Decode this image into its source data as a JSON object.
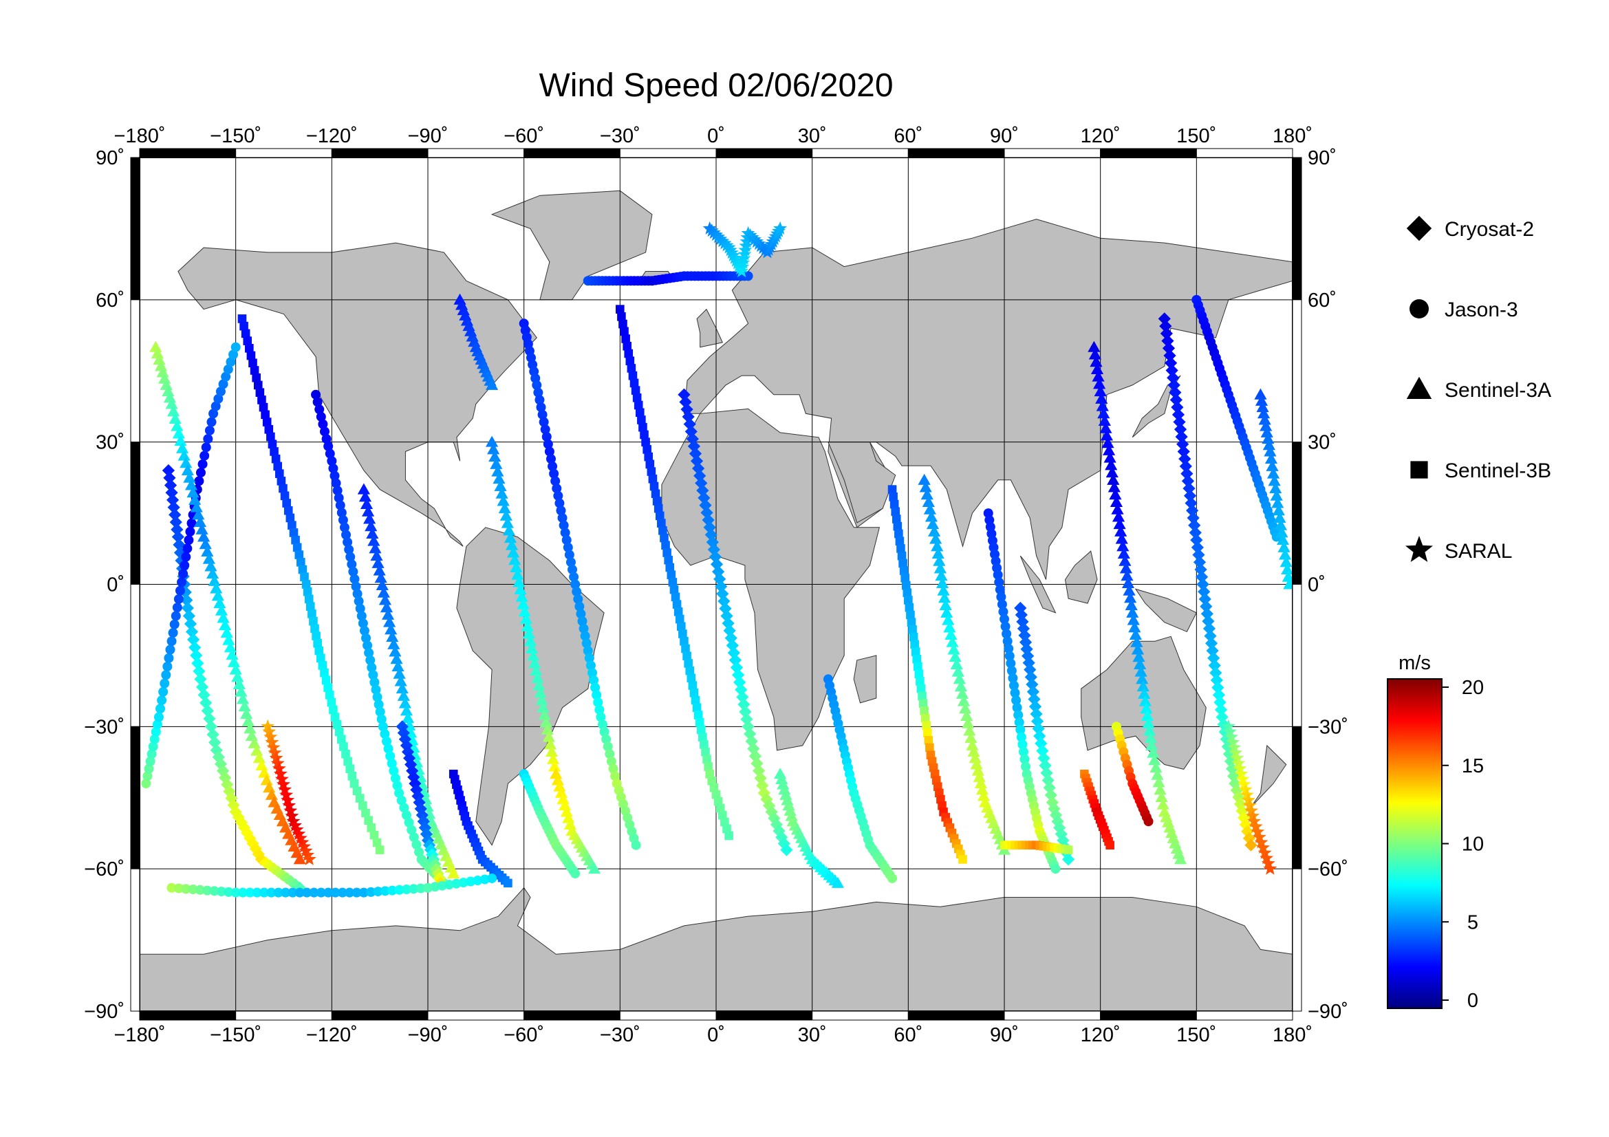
{
  "chart_data": {
    "type": "scatter",
    "title": "Wind Speed 02/06/2020",
    "lon_ticks": [
      {
        "value": -180,
        "label": "−180˚"
      },
      {
        "value": -150,
        "label": "−150˚"
      },
      {
        "value": -120,
        "label": "−120˚"
      },
      {
        "value": -90,
        "label": "−90˚"
      },
      {
        "value": -60,
        "label": "−60˚"
      },
      {
        "value": -30,
        "label": "−30˚"
      },
      {
        "value": 0,
        "label": "0˚"
      },
      {
        "value": 30,
        "label": "30˚"
      },
      {
        "value": 60,
        "label": "60˚"
      },
      {
        "value": 90,
        "label": "90˚"
      },
      {
        "value": 120,
        "label": "120˚"
      },
      {
        "value": 150,
        "label": "150˚"
      },
      {
        "value": 180,
        "label": "180˚"
      }
    ],
    "lat_ticks": [
      {
        "value": 90,
        "label": "90˚"
      },
      {
        "value": 60,
        "label": "60˚"
      },
      {
        "value": 30,
        "label": "30˚"
      },
      {
        "value": 0,
        "label": "0˚"
      },
      {
        "value": -30,
        "label": "−30˚"
      },
      {
        "value": -60,
        "label": "−60˚"
      },
      {
        "value": -90,
        "label": "−90˚"
      }
    ],
    "xlim": [
      -180,
      180
    ],
    "ylim": [
      -90,
      90
    ],
    "grid": true,
    "legend": {
      "placement": "right",
      "entries": [
        {
          "name": "Cryosat-2",
          "marker": "diamond"
        },
        {
          "name": "Jason-3",
          "marker": "circle"
        },
        {
          "name": "Sentinel-3A",
          "marker": "triangle"
        },
        {
          "name": "Sentinel-3B",
          "marker": "square"
        },
        {
          "name": "SARAL",
          "marker": "star"
        }
      ]
    },
    "colorbar": {
      "unit": "m/s",
      "range": [
        0,
        20
      ],
      "ticks": [
        {
          "value": 0,
          "label": "0"
        },
        {
          "value": 5,
          "label": "5"
        },
        {
          "value": 10,
          "label": "10"
        },
        {
          "value": 15,
          "label": "15"
        },
        {
          "value": 20,
          "label": "20"
        }
      ],
      "colors": [
        "#00007f",
        "#0000ff",
        "#007fff",
        "#00ffff",
        "#7fff7f",
        "#ffff00",
        "#ff7f00",
        "#ff0000",
        "#7f0000"
      ]
    },
    "land_color": "#bebebe",
    "ocean_color": "#ffffff",
    "tracks": [
      {
        "marker": "diamond",
        "points": [
          [
            -171,
            24,
            3
          ],
          [
            -168,
            10,
            4
          ],
          [
            -165,
            -5,
            6
          ],
          [
            -161,
            -20,
            8
          ],
          [
            -156,
            -35,
            9
          ],
          [
            -150,
            -48,
            12
          ],
          [
            -142,
            -58,
            13
          ],
          [
            -130,
            -64,
            9
          ]
        ]
      },
      {
        "marker": "circle",
        "points": [
          [
            -178,
            -42,
            10
          ],
          [
            -174,
            -28,
            7
          ],
          [
            -170,
            -12,
            5
          ],
          [
            -166,
            4,
            3
          ],
          [
            -162,
            20,
            2
          ],
          [
            -157,
            36,
            4
          ],
          [
            -150,
            50,
            6
          ]
        ]
      },
      {
        "marker": "triangle",
        "points": [
          [
            -175,
            50,
            11
          ],
          [
            -170,
            38,
            9
          ],
          [
            -165,
            24,
            6
          ],
          [
            -160,
            10,
            5
          ],
          [
            -155,
            -4,
            7
          ],
          [
            -150,
            -18,
            8
          ],
          [
            -145,
            -32,
            10
          ],
          [
            -138,
            -46,
            15
          ],
          [
            -130,
            -58,
            16
          ]
        ]
      },
      {
        "marker": "square",
        "points": [
          [
            -148,
            56,
            3
          ],
          [
            -143,
            42,
            2
          ],
          [
            -138,
            28,
            3
          ],
          [
            -133,
            14,
            4
          ],
          [
            -128,
            0,
            6
          ],
          [
            -124,
            -14,
            7
          ],
          [
            -119,
            -28,
            8
          ],
          [
            -113,
            -42,
            9
          ],
          [
            -105,
            -56,
            10
          ]
        ]
      },
      {
        "marker": "star",
        "points": [
          [
            -140,
            -30,
            14
          ],
          [
            -136,
            -40,
            17
          ],
          [
            -132,
            -50,
            18
          ],
          [
            -127,
            -58,
            16
          ]
        ]
      },
      {
        "marker": "circle",
        "points": [
          [
            -125,
            40,
            2
          ],
          [
            -120,
            26,
            3
          ],
          [
            -116,
            12,
            4
          ],
          [
            -112,
            -2,
            5
          ],
          [
            -108,
            -16,
            6
          ],
          [
            -104,
            -30,
            7
          ],
          [
            -99,
            -44,
            8
          ],
          [
            -92,
            -58,
            9
          ],
          [
            -85,
            -63,
            10
          ]
        ]
      },
      {
        "marker": "triangle",
        "points": [
          [
            -110,
            20,
            3
          ],
          [
            -106,
            6,
            4
          ],
          [
            -102,
            -8,
            5
          ],
          [
            -98,
            -22,
            6
          ],
          [
            -94,
            -36,
            8
          ],
          [
            -89,
            -50,
            9
          ],
          [
            -82,
            -61,
            12
          ]
        ]
      },
      {
        "marker": "diamond",
        "points": [
          [
            -98,
            -30,
            4
          ],
          [
            -94,
            -42,
            3
          ],
          [
            -90,
            -54,
            5
          ],
          [
            -86,
            -63,
            13
          ]
        ]
      },
      {
        "marker": "square",
        "points": [
          [
            -82,
            -40,
            2
          ],
          [
            -78,
            -50,
            3
          ],
          [
            -73,
            -58,
            4
          ],
          [
            -65,
            -63,
            5
          ]
        ]
      },
      {
        "marker": "circle",
        "points": [
          [
            -60,
            55,
            3
          ],
          [
            -56,
            42,
            4
          ],
          [
            -52,
            28,
            3
          ],
          [
            -48,
            14,
            4
          ],
          [
            -44,
            0,
            5
          ],
          [
            -40,
            -14,
            6
          ],
          [
            -36,
            -28,
            8
          ],
          [
            -31,
            -42,
            11
          ],
          [
            -25,
            -55,
            9
          ]
        ]
      },
      {
        "marker": "triangle",
        "points": [
          [
            -70,
            30,
            5
          ],
          [
            -66,
            16,
            6
          ],
          [
            -62,
            2,
            7
          ],
          [
            -58,
            -12,
            8
          ],
          [
            -54,
            -26,
            9
          ],
          [
            -50,
            -40,
            13
          ],
          [
            -45,
            -52,
            12
          ],
          [
            -38,
            -60,
            9
          ]
        ]
      },
      {
        "marker": "circle",
        "points": [
          [
            -40,
            64,
            4
          ],
          [
            -30,
            64,
            3
          ],
          [
            -20,
            64,
            2
          ],
          [
            -10,
            65,
            3
          ],
          [
            0,
            65,
            3
          ],
          [
            10,
            65,
            4
          ]
        ]
      },
      {
        "marker": "square",
        "points": [
          [
            -30,
            58,
            2
          ],
          [
            -26,
            44,
            3
          ],
          [
            -22,
            30,
            3
          ],
          [
            -18,
            16,
            4
          ],
          [
            -14,
            2,
            5
          ],
          [
            -10,
            -12,
            6
          ],
          [
            -6,
            -26,
            7
          ],
          [
            -2,
            -40,
            10
          ],
          [
            4,
            -53,
            9
          ]
        ]
      },
      {
        "marker": "star",
        "points": [
          [
            -2,
            75,
            5
          ],
          [
            4,
            71,
            6
          ],
          [
            8,
            66,
            7
          ],
          [
            10,
            74,
            6
          ],
          [
            16,
            70,
            5
          ],
          [
            20,
            75,
            6
          ]
        ]
      },
      {
        "marker": "diamond",
        "points": [
          [
            -10,
            40,
            3
          ],
          [
            -6,
            26,
            4
          ],
          [
            -2,
            12,
            5
          ],
          [
            2,
            -2,
            6
          ],
          [
            6,
            -16,
            7
          ],
          [
            10,
            -30,
            9
          ],
          [
            15,
            -44,
            11
          ],
          [
            22,
            -56,
            8
          ]
        ]
      },
      {
        "marker": "triangle",
        "points": [
          [
            20,
            -40,
            9
          ],
          [
            24,
            -50,
            10
          ],
          [
            30,
            -58,
            8
          ],
          [
            38,
            -63,
            7
          ]
        ]
      },
      {
        "marker": "circle",
        "points": [
          [
            35,
            -20,
            5
          ],
          [
            39,
            -32,
            6
          ],
          [
            43,
            -44,
            8
          ],
          [
            48,
            -55,
            9
          ],
          [
            55,
            -62,
            10
          ]
        ]
      },
      {
        "marker": "square",
        "points": [
          [
            55,
            20,
            4
          ],
          [
            58,
            6,
            5
          ],
          [
            61,
            -8,
            6
          ],
          [
            64,
            -22,
            8
          ],
          [
            67,
            -36,
            15
          ],
          [
            71,
            -48,
            17
          ],
          [
            77,
            -58,
            13
          ]
        ]
      },
      {
        "marker": "triangle",
        "points": [
          [
            65,
            22,
            5
          ],
          [
            69,
            8,
            6
          ],
          [
            72,
            -6,
            7
          ],
          [
            76,
            -20,
            9
          ],
          [
            80,
            -34,
            11
          ],
          [
            84,
            -46,
            12
          ],
          [
            90,
            -56,
            10
          ]
        ]
      },
      {
        "marker": "circle",
        "points": [
          [
            85,
            15,
            3
          ],
          [
            88,
            2,
            4
          ],
          [
            91,
            -12,
            5
          ],
          [
            94,
            -26,
            6
          ],
          [
            97,
            -40,
            9
          ],
          [
            101,
            -52,
            12
          ],
          [
            106,
            -60,
            9
          ]
        ]
      },
      {
        "marker": "diamond",
        "points": [
          [
            95,
            -5,
            4
          ],
          [
            98,
            -18,
            5
          ],
          [
            101,
            -32,
            7
          ],
          [
            105,
            -46,
            10
          ],
          [
            110,
            -58,
            8
          ]
        ]
      },
      {
        "marker": "square",
        "points": [
          [
            115,
            -40,
            15
          ],
          [
            119,
            -48,
            18
          ],
          [
            123,
            -55,
            17
          ]
        ]
      },
      {
        "marker": "circle",
        "points": [
          [
            125,
            -30,
            12
          ],
          [
            130,
            -42,
            17
          ],
          [
            135,
            -50,
            19
          ]
        ]
      },
      {
        "marker": "triangle",
        "points": [
          [
            118,
            50,
            2
          ],
          [
            121,
            36,
            3
          ],
          [
            124,
            22,
            2
          ],
          [
            127,
            8,
            3
          ],
          [
            130,
            -6,
            5
          ],
          [
            133,
            -20,
            6
          ],
          [
            136,
            -34,
            9
          ],
          [
            140,
            -48,
            11
          ],
          [
            145,
            -58,
            10
          ]
        ]
      },
      {
        "marker": "diamond",
        "points": [
          [
            140,
            56,
            2
          ],
          [
            143,
            42,
            3
          ],
          [
            146,
            28,
            3
          ],
          [
            149,
            14,
            4
          ],
          [
            152,
            0,
            5
          ],
          [
            155,
            -14,
            6
          ],
          [
            158,
            -28,
            8
          ],
          [
            162,
            -42,
            10
          ],
          [
            167,
            -55,
            14
          ]
        ]
      },
      {
        "marker": "circle",
        "points": [
          [
            150,
            60,
            3
          ],
          [
            155,
            50,
            2
          ],
          [
            160,
            40,
            3
          ],
          [
            165,
            30,
            4
          ],
          [
            170,
            20,
            5
          ],
          [
            175,
            10,
            6
          ]
        ]
      },
      {
        "marker": "star",
        "points": [
          [
            160,
            -30,
            9
          ],
          [
            164,
            -40,
            12
          ],
          [
            168,
            -50,
            15
          ],
          [
            173,
            -60,
            16
          ]
        ]
      },
      {
        "marker": "triangle",
        "points": [
          [
            170,
            40,
            4
          ],
          [
            173,
            28,
            5
          ],
          [
            176,
            14,
            6
          ],
          [
            179,
            0,
            7
          ]
        ]
      },
      {
        "marker": "circle",
        "points": [
          [
            -170,
            -64,
            11
          ],
          [
            -150,
            -65,
            8
          ],
          [
            -130,
            -65,
            6
          ],
          [
            -110,
            -65,
            6
          ],
          [
            -90,
            -64,
            9
          ],
          [
            -70,
            -62,
            7
          ]
        ]
      },
      {
        "marker": "square",
        "points": [
          [
            90,
            -55,
            12
          ],
          [
            100,
            -55,
            15
          ],
          [
            110,
            -56,
            11
          ]
        ]
      },
      {
        "marker": "triangle",
        "points": [
          [
            -80,
            60,
            3
          ],
          [
            -75,
            50,
            4
          ],
          [
            -70,
            42,
            5
          ]
        ]
      },
      {
        "marker": "circle",
        "points": [
          [
            -60,
            -40,
            7
          ],
          [
            -55,
            -48,
            9
          ],
          [
            -50,
            -55,
            10
          ],
          [
            -44,
            -61,
            9
          ]
        ]
      }
    ]
  }
}
